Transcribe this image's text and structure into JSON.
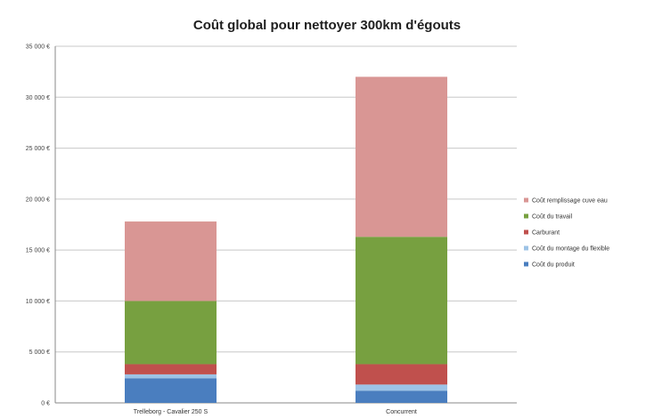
{
  "chart_data": {
    "type": "bar",
    "stacked": true,
    "title": "Coût global pour nettoyer 300km d'égouts",
    "xlabel": "",
    "ylabel": "",
    "ylim": [
      0,
      35000
    ],
    "ytick_labels": [
      "0 €",
      "5 000 €",
      "10 000 €",
      "15 000 €",
      "20 000 €",
      "25 000 €",
      "30 000 €",
      "35 000 €"
    ],
    "yticks": [
      0,
      5000,
      10000,
      15000,
      20000,
      25000,
      30000,
      35000
    ],
    "categories": [
      "Trelleborg - Cavalier 250 S",
      "Concurrent"
    ],
    "series": [
      {
        "name": "Coût du produit",
        "color": "#4a7ebf",
        "values": [
          2400,
          1200
        ]
      },
      {
        "name": "Coût du montage du flexible",
        "color": "#9dc3e6",
        "values": [
          400,
          600
        ]
      },
      {
        "name": "Carburant",
        "color": "#c0504d",
        "values": [
          1000,
          2000
        ]
      },
      {
        "name": "Coût du travail",
        "color": "#77a040",
        "values": [
          6200,
          12500
        ]
      },
      {
        "name": "Coût remplissage cuve eau",
        "color": "#d99694",
        "values": [
          7800,
          15700
        ]
      }
    ],
    "legend_order": [
      "Coût remplissage cuve eau",
      "Coût du travail",
      "Carburant",
      "Coût du montage du flexible",
      "Coût du produit"
    ],
    "legend_position": "right",
    "grid": true
  }
}
